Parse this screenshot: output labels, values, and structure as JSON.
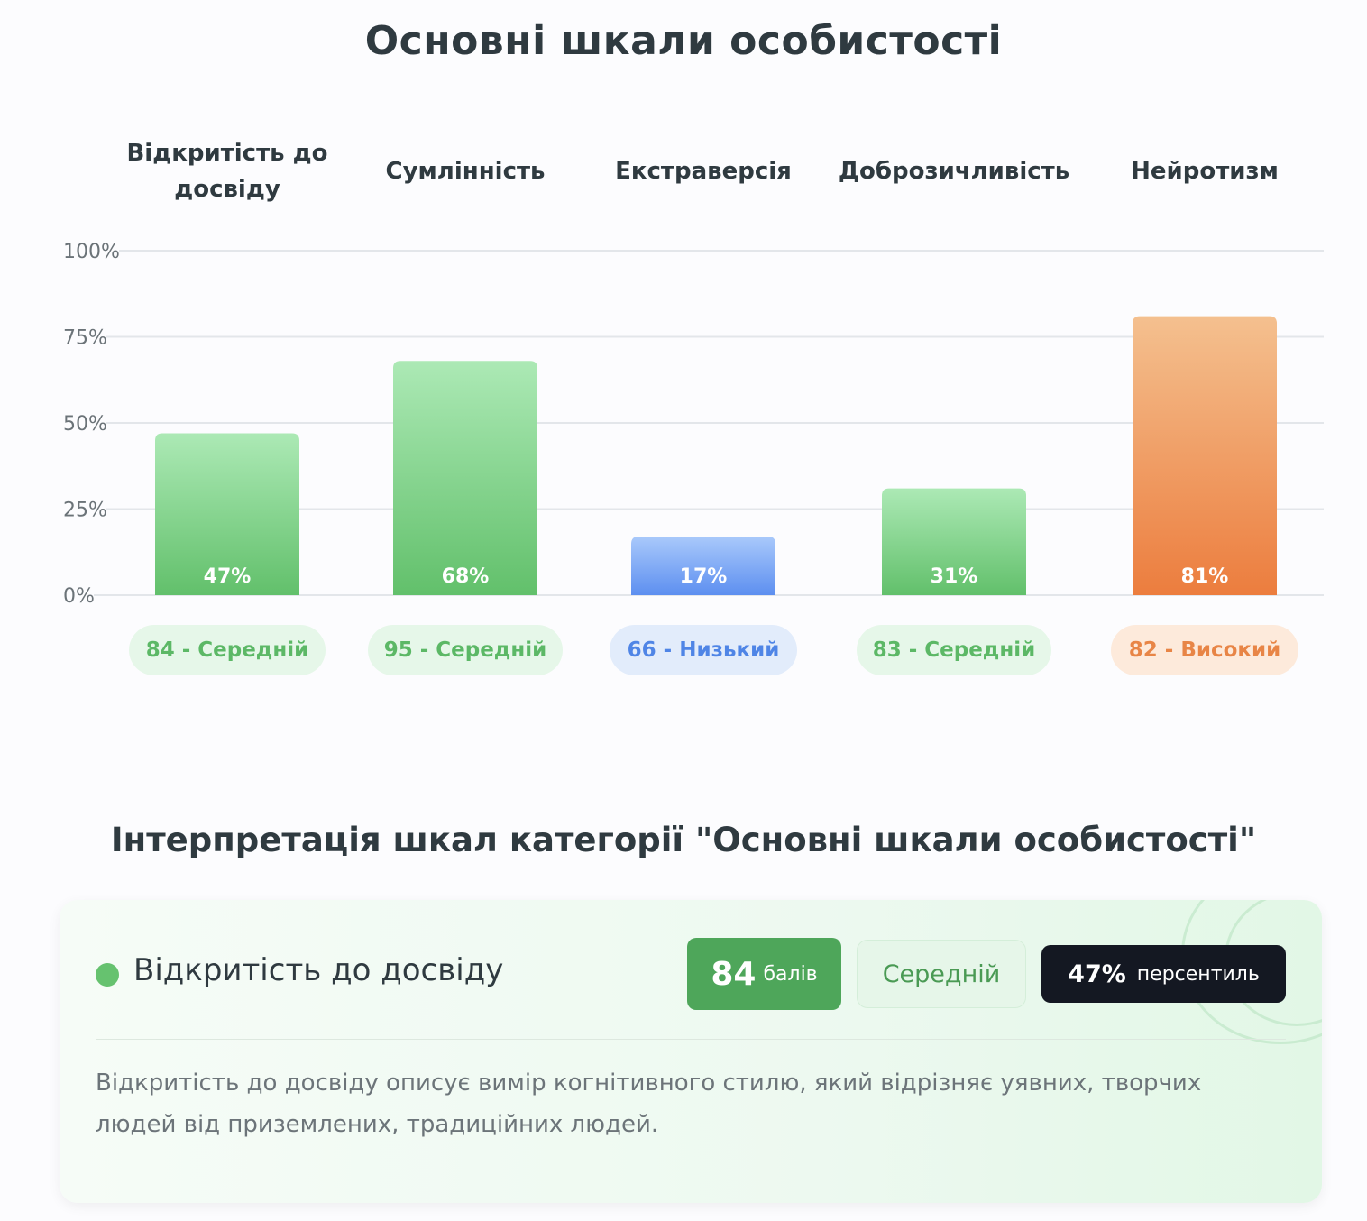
{
  "page_title": "Основні шкали особистості",
  "chart_data": {
    "type": "bar",
    "title": "Основні шкали особистості",
    "categories": [
      "Відкритість до досвіду",
      "Сумлінність",
      "Екстраверсія",
      "Доброзичливість",
      "Нейротизм"
    ],
    "values": [
      47,
      68,
      17,
      31,
      81
    ],
    "value_labels": [
      "47%",
      "68%",
      "17%",
      "31%",
      "81%"
    ],
    "ylim": [
      0,
      100
    ],
    "yticks": [
      0,
      25,
      50,
      75,
      100
    ],
    "ytick_labels": [
      "0%",
      "25%",
      "50%",
      "75%",
      "100%"
    ],
    "grid": true,
    "bar_colors": [
      "green",
      "green",
      "blue",
      "green",
      "orange"
    ],
    "badges": [
      "84 - Середній",
      "95 - Середній",
      "66 - Низький",
      "83 - Середній",
      "82 - Високий"
    ]
  },
  "colors": {
    "green": {
      "top": "#ace9b5",
      "bottom": "#62c06b",
      "pill_bg": "#e6f7e9",
      "pill_text": "#5cb866"
    },
    "blue": {
      "top": "#a9c9fb",
      "bottom": "#5d8ff0",
      "pill_bg": "#e2ecfb",
      "pill_text": "#4f85e6"
    },
    "orange": {
      "top": "#f4c08f",
      "bottom": "#ec7d3e",
      "pill_bg": "#fdeadb",
      "pill_text": "#e88546"
    }
  },
  "interpretation": {
    "section_title": "Інтерпретація шкал категорії \"Основні шкали особистості\"",
    "card": {
      "title": "Відкритість до досвіду",
      "score": "84",
      "score_unit": "балів",
      "level": "Середній",
      "percentile": "47%",
      "percentile_unit": "персентиль",
      "description": "Відкритість до досвіду описує вимір когнітивного стилю, який відрізняє уявних, творчих людей від приземлених, традиційних людей."
    }
  }
}
